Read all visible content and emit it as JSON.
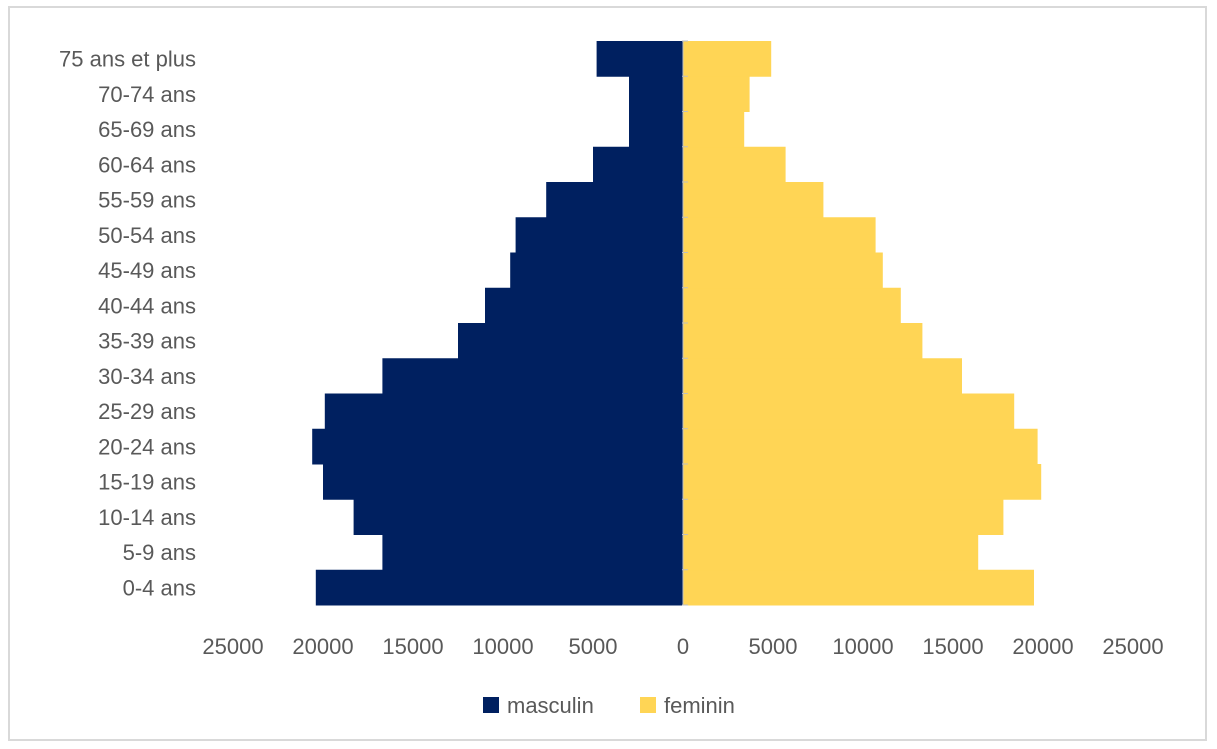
{
  "chart_data": {
    "type": "bar",
    "orientation": "horizontal",
    "layout": "population-pyramid",
    "categories": [
      "0-4 ans",
      "5-9 ans",
      "10-14 ans",
      "15-19 ans",
      "20-24 ans",
      "25-29 ans",
      "30-34 ans",
      "35-39 ans",
      "40-44 ans",
      "45-49 ans",
      "50-54 ans",
      "55-59 ans",
      "60-64 ans",
      "65-69 ans",
      "70-74 ans",
      "75 ans et plus"
    ],
    "series": [
      {
        "name": "masculin",
        "color": "#002060",
        "side": "left",
        "values": [
          20400,
          16700,
          18300,
          20000,
          20600,
          19900,
          16700,
          12500,
          11000,
          9600,
          9300,
          7600,
          5000,
          3000,
          3000,
          4800
        ]
      },
      {
        "name": "feminin",
        "color": "#FFD555",
        "side": "right",
        "values": [
          19500,
          16400,
          17800,
          19900,
          19700,
          18400,
          15500,
          13300,
          12100,
          11100,
          10700,
          7800,
          5700,
          3400,
          3700,
          4900
        ]
      }
    ],
    "xlim": [
      -25000,
      25000
    ],
    "xticks": [
      -25000,
      -20000,
      -15000,
      -10000,
      -5000,
      0,
      5000,
      10000,
      15000,
      20000,
      25000
    ],
    "xtick_labels": [
      "25000",
      "20000",
      "15000",
      "10000",
      "5000",
      "0",
      "5000",
      "10000",
      "15000",
      "20000",
      "25000"
    ],
    "title": "",
    "xlabel": "",
    "ylabel": "",
    "grid": false,
    "legend_position": "bottom"
  }
}
